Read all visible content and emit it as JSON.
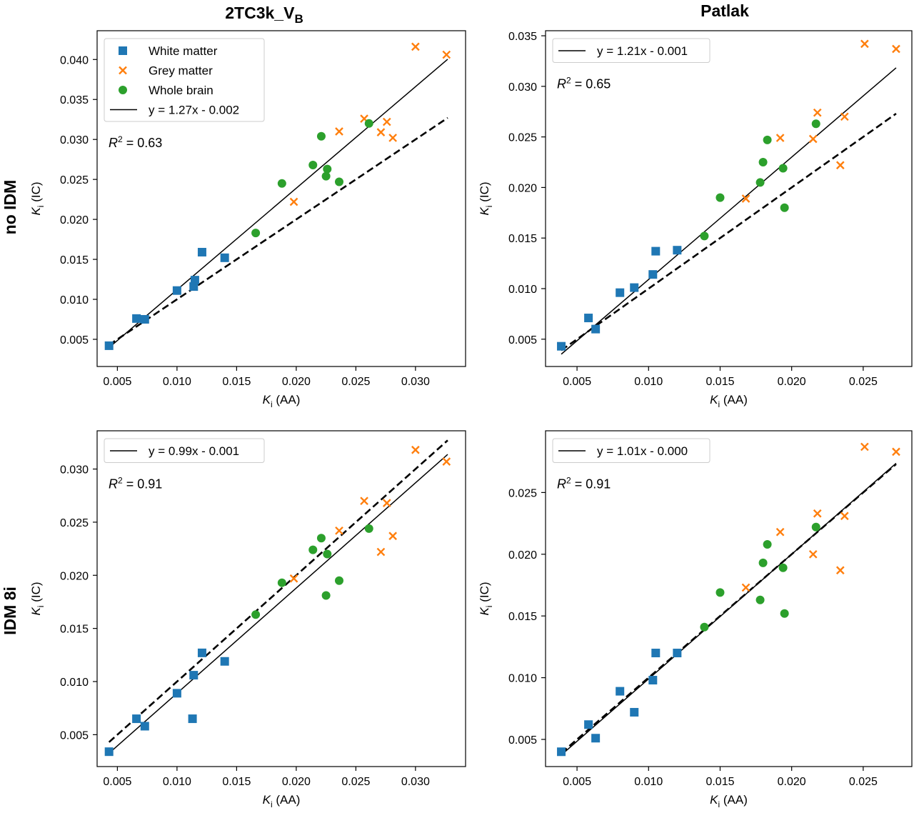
{
  "column_titles": [
    "2TC3k_V",
    "Patlak"
  ],
  "column_title_subscripts": [
    "B",
    ""
  ],
  "row_labels": [
    "no IDM",
    "IDM 8i"
  ],
  "colors": {
    "white_matter": "#1f77b4",
    "grey_matter": "#ff7f0e",
    "whole_brain": "#2ca02c",
    "fit_line": "#000000"
  },
  "chart_data": [
    {
      "type": "scatter",
      "row": 0,
      "col": 0,
      "xlabel": "K_i (AA)",
      "ylabel": "K_i (IC)",
      "xlabel_var": "K",
      "xlabel_sub": "i",
      "xlabel_rest": " (AA)",
      "ylabel_var": "K",
      "ylabel_sub": "i",
      "ylabel_rest": " (IC)",
      "xlim": [
        0.0033,
        0.0342
      ],
      "ylim": [
        0.0016,
        0.0436
      ],
      "xticks": [
        0.005,
        0.01,
        0.015,
        0.02,
        0.025,
        0.03
      ],
      "xtick_labels": [
        "0.005",
        "0.010",
        "0.015",
        "0.020",
        "0.025",
        "0.030"
      ],
      "yticks": [
        0.005,
        0.01,
        0.015,
        0.02,
        0.025,
        0.03,
        0.035,
        0.04
      ],
      "ytick_labels": [
        "0.005",
        "0.010",
        "0.015",
        "0.020",
        "0.025",
        "0.030",
        "0.035",
        "0.040"
      ],
      "legend_placement": "top-left",
      "fit_label": "y = 1.27x - 0.002",
      "fit": {
        "slope": 1.27,
        "intercept": -0.0015,
        "x_range": [
          0.0043,
          0.0327
        ]
      },
      "identity_line": {
        "x_range": [
          0.0043,
          0.0327
        ]
      },
      "r2_prefix": "R",
      "r2_sup": "2",
      "r2_value": " = 0.63",
      "series": [
        {
          "name": "White matter",
          "marker": "square",
          "x": [
            0.0043,
            0.0066,
            0.0073,
            0.01,
            0.0114,
            0.0115,
            0.0121,
            0.014
          ],
          "y": [
            0.0042,
            0.0076,
            0.0075,
            0.0111,
            0.0116,
            0.0124,
            0.0159,
            0.0152
          ]
        },
        {
          "name": "Grey matter",
          "marker": "x",
          "x": [
            0.0198,
            0.0236,
            0.0257,
            0.0271,
            0.0276,
            0.0281,
            0.03,
            0.0326
          ],
          "y": [
            0.0222,
            0.031,
            0.0326,
            0.0309,
            0.0322,
            0.0302,
            0.0416,
            0.0406
          ]
        },
        {
          "name": "Whole brain",
          "marker": "circle",
          "x": [
            0.0166,
            0.0188,
            0.0214,
            0.0221,
            0.0225,
            0.0226,
            0.0236,
            0.0261
          ],
          "y": [
            0.0183,
            0.0245,
            0.0268,
            0.0304,
            0.0254,
            0.0263,
            0.0247,
            0.032
          ]
        }
      ]
    },
    {
      "type": "scatter",
      "row": 0,
      "col": 1,
      "xlabel": "K_i (AA)",
      "ylabel": "K_i (IC)",
      "xlabel_var": "K",
      "xlabel_sub": "i",
      "xlabel_rest": " (AA)",
      "ylabel_var": "K",
      "ylabel_sub": "i",
      "ylabel_rest": " (IC)",
      "xlim": [
        0.0028,
        0.0284
      ],
      "ylim": [
        0.0023,
        0.0355
      ],
      "xticks": [
        0.005,
        0.01,
        0.015,
        0.02,
        0.025
      ],
      "xtick_labels": [
        "0.005",
        "0.010",
        "0.015",
        "0.020",
        "0.025"
      ],
      "yticks": [
        0.005,
        0.01,
        0.015,
        0.02,
        0.025,
        0.03,
        0.035
      ],
      "ytick_labels": [
        "0.005",
        "0.010",
        "0.015",
        "0.020",
        "0.025",
        "0.030",
        "0.035"
      ],
      "legend_placement": "top-left",
      "fit_label": "y = 1.21x - 0.001",
      "fit": {
        "slope": 1.21,
        "intercept": -0.0012,
        "x_range": [
          0.0039,
          0.0273
        ]
      },
      "identity_line": {
        "x_range": [
          0.0039,
          0.0273
        ]
      },
      "r2_prefix": "R",
      "r2_sup": "2",
      "r2_value": " = 0.65",
      "series": [
        {
          "name": "White matter",
          "marker": "square",
          "x": [
            0.0039,
            0.0058,
            0.0063,
            0.008,
            0.009,
            0.0103,
            0.0105,
            0.012
          ],
          "y": [
            0.0043,
            0.0071,
            0.006,
            0.0096,
            0.0101,
            0.0114,
            0.0137,
            0.0138
          ]
        },
        {
          "name": "Grey matter",
          "marker": "x",
          "x": [
            0.0168,
            0.0192,
            0.0215,
            0.0218,
            0.0234,
            0.0237,
            0.0251,
            0.0273
          ],
          "y": [
            0.0189,
            0.0249,
            0.0248,
            0.0274,
            0.0222,
            0.027,
            0.0342,
            0.0337
          ]
        },
        {
          "name": "Whole brain",
          "marker": "circle",
          "x": [
            0.0139,
            0.015,
            0.0178,
            0.018,
            0.0183,
            0.0194,
            0.0195,
            0.0217
          ],
          "y": [
            0.0152,
            0.019,
            0.0205,
            0.0225,
            0.0247,
            0.0219,
            0.018,
            0.0263
          ]
        }
      ]
    },
    {
      "type": "scatter",
      "row": 1,
      "col": 0,
      "xlabel": "K_i (AA)",
      "ylabel": "K_i (IC)",
      "xlabel_var": "K",
      "xlabel_sub": "i",
      "xlabel_rest": " (AA)",
      "ylabel_var": "K",
      "ylabel_sub": "i",
      "ylabel_rest": " (IC)",
      "xlim": [
        0.0033,
        0.0342
      ],
      "ylim": [
        0.002,
        0.0336
      ],
      "xticks": [
        0.005,
        0.01,
        0.015,
        0.02,
        0.025,
        0.03
      ],
      "xtick_labels": [
        "0.005",
        "0.010",
        "0.015",
        "0.020",
        "0.025",
        "0.030"
      ],
      "yticks": [
        0.005,
        0.01,
        0.015,
        0.02,
        0.025,
        0.03
      ],
      "ytick_labels": [
        "0.005",
        "0.010",
        "0.015",
        "0.020",
        "0.025",
        "0.030"
      ],
      "legend_placement": "top-left",
      "fit_label": "y = 0.99x - 0.001",
      "fit": {
        "slope": 0.99,
        "intercept": -0.001,
        "x_range": [
          0.0043,
          0.0327
        ]
      },
      "identity_line": {
        "x_range": [
          0.0043,
          0.0327
        ]
      },
      "r2_prefix": "R",
      "r2_sup": "2",
      "r2_value": " = 0.91",
      "series": [
        {
          "name": "White matter",
          "marker": "square",
          "x": [
            0.0043,
            0.0066,
            0.0073,
            0.01,
            0.0113,
            0.0114,
            0.0121,
            0.014
          ],
          "y": [
            0.0034,
            0.0065,
            0.0058,
            0.0089,
            0.0065,
            0.0106,
            0.0127,
            0.0119
          ]
        },
        {
          "name": "Grey matter",
          "marker": "x",
          "x": [
            0.0198,
            0.0236,
            0.0257,
            0.0271,
            0.0276,
            0.0281,
            0.03,
            0.0326
          ],
          "y": [
            0.0197,
            0.0242,
            0.027,
            0.0222,
            0.0268,
            0.0237,
            0.0318,
            0.0307
          ]
        },
        {
          "name": "Whole brain",
          "marker": "circle",
          "x": [
            0.0166,
            0.0188,
            0.0214,
            0.0221,
            0.0225,
            0.0226,
            0.0236,
            0.0261
          ],
          "y": [
            0.0163,
            0.0193,
            0.0224,
            0.0235,
            0.0181,
            0.022,
            0.0195,
            0.0244
          ]
        }
      ]
    },
    {
      "type": "scatter",
      "row": 1,
      "col": 1,
      "xlabel": "K_i (AA)",
      "ylabel": "K_i (IC)",
      "xlabel_var": "K",
      "xlabel_sub": "i",
      "xlabel_rest": " (AA)",
      "ylabel_var": "K",
      "ylabel_sub": "i",
      "ylabel_rest": " (IC)",
      "xlim": [
        0.0028,
        0.0284
      ],
      "ylim": [
        0.0028,
        0.03
      ],
      "xticks": [
        0.005,
        0.01,
        0.015,
        0.02,
        0.025
      ],
      "xtick_labels": [
        "0.005",
        "0.010",
        "0.015",
        "0.020",
        "0.025"
      ],
      "yticks": [
        0.005,
        0.01,
        0.015,
        0.02,
        0.025
      ],
      "ytick_labels": [
        "0.005",
        "0.010",
        "0.015",
        "0.020",
        "0.025"
      ],
      "legend_placement": "top-left",
      "fit_label": "y = 1.01x - 0.000",
      "fit": {
        "slope": 1.01,
        "intercept": -0.0002,
        "x_range": [
          0.0039,
          0.0273
        ]
      },
      "identity_line": {
        "x_range": [
          0.0039,
          0.0273
        ]
      },
      "r2_prefix": "R",
      "r2_sup": "2",
      "r2_value": " = 0.91",
      "series": [
        {
          "name": "White matter",
          "marker": "square",
          "x": [
            0.0039,
            0.0058,
            0.0063,
            0.008,
            0.009,
            0.0103,
            0.0105,
            0.012
          ],
          "y": [
            0.004,
            0.0062,
            0.0051,
            0.0089,
            0.0072,
            0.0098,
            0.012,
            0.012
          ]
        },
        {
          "name": "Grey matter",
          "marker": "x",
          "x": [
            0.0168,
            0.0192,
            0.0215,
            0.0218,
            0.0234,
            0.0237,
            0.0251,
            0.0273
          ],
          "y": [
            0.0173,
            0.0218,
            0.02,
            0.0233,
            0.0187,
            0.0231,
            0.0287,
            0.0283
          ]
        },
        {
          "name": "Whole brain",
          "marker": "circle",
          "x": [
            0.0139,
            0.015,
            0.0178,
            0.018,
            0.0183,
            0.0194,
            0.0195,
            0.0217
          ],
          "y": [
            0.0141,
            0.0169,
            0.0163,
            0.0193,
            0.0208,
            0.0189,
            0.0152,
            0.0222
          ]
        }
      ]
    }
  ]
}
